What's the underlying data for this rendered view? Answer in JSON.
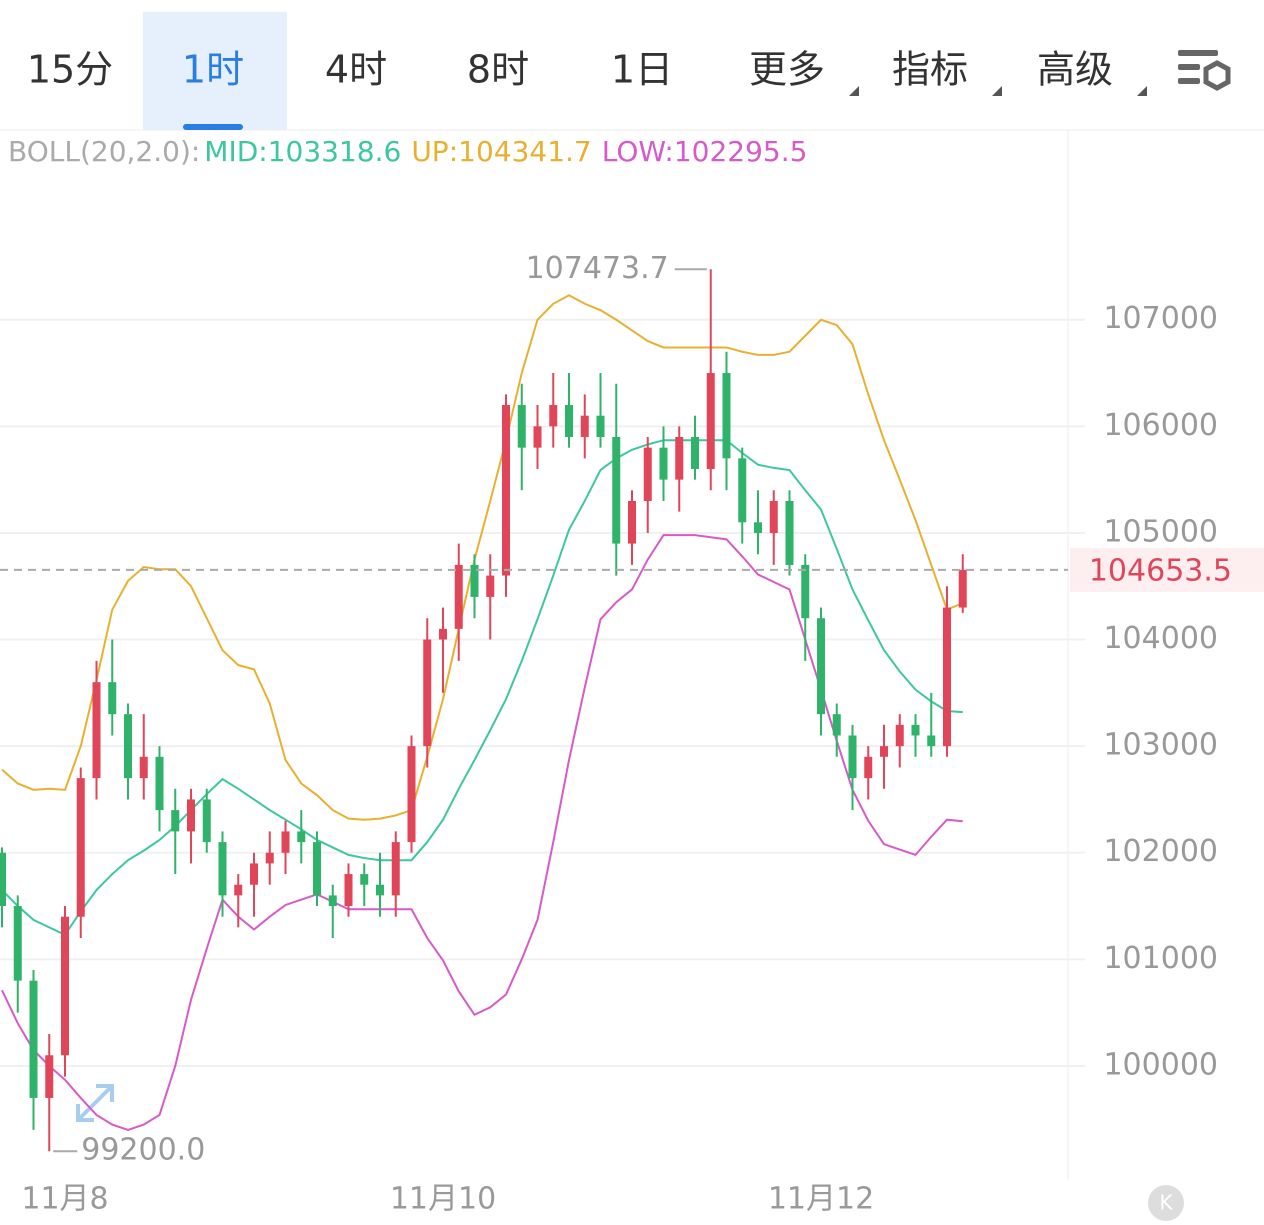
{
  "toolbar": {
    "tabs": [
      "15分",
      "1时",
      "4时",
      "8时",
      "1日",
      "更多",
      "指标",
      "高级"
    ],
    "selected": 1
  },
  "chart_data": {
    "type": "candlestick",
    "indicator": "BOLL(20,2.0):",
    "categories": [
      null,
      null,
      null,
      null,
      "11月8",
      null,
      null,
      null,
      null,
      null,
      null,
      null,
      null,
      null,
      null,
      null,
      null,
      null,
      null,
      null,
      null,
      null,
      null,
      null,
      null,
      null,
      null,
      null,
      "11月10",
      null,
      null,
      null,
      null,
      null,
      null,
      null,
      null,
      null,
      null,
      null,
      null,
      null,
      null,
      null,
      null,
      null,
      null,
      null,
      null,
      null,
      null,
      null,
      "11月12",
      null,
      null,
      null,
      null,
      null,
      null,
      null,
      null,
      null
    ],
    "open": [
      102000,
      101500,
      100800,
      99700,
      100100,
      101400,
      102700,
      103600,
      103300,
      102700,
      102900,
      102400,
      102200,
      102500,
      102100,
      101600,
      101700,
      101900,
      102000,
      102200,
      102100,
      101600,
      101500,
      101800,
      101700,
      101600,
      102100,
      103000,
      104000,
      104100,
      104700,
      104400,
      104600,
      106200,
      105800,
      106000,
      106200,
      105900,
      106100,
      105900,
      104900,
      105300,
      105800,
      105500,
      105900,
      105600,
      106500,
      105700,
      105100,
      105000,
      105300,
      104700,
      104200,
      103300,
      103100,
      102700,
      102900,
      103000,
      103200,
      103100,
      103000,
      104300
    ],
    "high": [
      102050,
      101600,
      100900,
      100300,
      101500,
      102800,
      103800,
      104000,
      103400,
      103300,
      103000,
      102600,
      102600,
      102600,
      102200,
      101800,
      102000,
      102200,
      102300,
      102400,
      102200,
      101700,
      101900,
      101900,
      102000,
      102200,
      103100,
      104200,
      104300,
      104900,
      104800,
      104800,
      106300,
      106400,
      106200,
      106500,
      106500,
      106300,
      106500,
      106400,
      105400,
      105900,
      106000,
      106000,
      106100,
      107473.7,
      106700,
      105800,
      105400,
      105400,
      105400,
      104800,
      104300,
      103400,
      103200,
      103000,
      103200,
      103300,
      103300,
      103500,
      104500,
      104800
    ],
    "low": [
      101300,
      100500,
      99400,
      99200,
      99900,
      101200,
      102500,
      103100,
      102500,
      102500,
      102200,
      101800,
      101900,
      102000,
      101400,
      101300,
      101400,
      101700,
      101800,
      101900,
      101500,
      101200,
      101400,
      101500,
      101400,
      101400,
      102000,
      102800,
      103500,
      103800,
      104200,
      104000,
      104400,
      105400,
      105600,
      105800,
      105800,
      105700,
      105800,
      104600,
      104700,
      105000,
      105300,
      105200,
      105500,
      105400,
      105400,
      104900,
      104800,
      104700,
      104600,
      103800,
      103100,
      102900,
      102400,
      102500,
      102600,
      102800,
      102900,
      102900,
      102900,
      104250
    ],
    "close": [
      101500,
      100800,
      99700,
      100100,
      101400,
      102700,
      103600,
      103300,
      102700,
      102900,
      102400,
      102200,
      102500,
      102100,
      101600,
      101700,
      101900,
      102000,
      102200,
      102100,
      101600,
      101500,
      101800,
      101700,
      101600,
      102100,
      103000,
      104000,
      104100,
      104700,
      104400,
      104600,
      106200,
      105800,
      106000,
      106200,
      105900,
      106100,
      105900,
      104900,
      105300,
      105800,
      105500,
      105900,
      105600,
      106500,
      105700,
      105100,
      105000,
      105300,
      104700,
      104200,
      103300,
      103100,
      102700,
      102900,
      103000,
      103200,
      103100,
      103000,
      104300,
      104653.5
    ],
    "up_color": "#e0455a",
    "down_color": "#2fb36b",
    "series": [
      {
        "name": "MID:103318.6",
        "color": "#3cc7a0",
        "values": [
          101650,
          101500,
          101370,
          101300,
          101230,
          101450,
          101650,
          101800,
          101930,
          102020,
          102120,
          102250,
          102400,
          102550,
          102690,
          102600,
          102500,
          102400,
          102310,
          102220,
          102120,
          102050,
          101980,
          101950,
          101930,
          101930,
          101930,
          102100,
          102310,
          102600,
          102870,
          103150,
          103440,
          103800,
          104190,
          104600,
          105030,
          105300,
          105590,
          105700,
          105780,
          105830,
          105870,
          105870,
          105870,
          105870,
          105870,
          105750,
          105640,
          105610,
          105590,
          105400,
          105220,
          104850,
          104470,
          104180,
          103900,
          103700,
          103530,
          103420,
          103330,
          103318.6
        ]
      },
      {
        "name": "UP:104341.7",
        "color": "#e8b030",
        "values": [
          102780,
          102650,
          102590,
          102600,
          102590,
          103000,
          103620,
          104280,
          104550,
          104680,
          104660,
          104660,
          104500,
          104200,
          103900,
          103760,
          103720,
          103400,
          102870,
          102650,
          102540,
          102400,
          102320,
          102310,
          102320,
          102350,
          102400,
          102900,
          103440,
          104100,
          104750,
          105300,
          105870,
          106500,
          107000,
          107150,
          107230,
          107150,
          107090,
          107000,
          106900,
          106800,
          106740,
          106740,
          106740,
          106740,
          106740,
          106700,
          106670,
          106670,
          106700,
          106850,
          107000,
          106950,
          106770,
          106300,
          105870,
          105500,
          105120,
          104700,
          104280,
          104341.7
        ]
      },
      {
        "name": "LOW:102295.5",
        "color": "#d65ac8",
        "values": [
          100710,
          100400,
          100150,
          100000,
          99870,
          99700,
          99540,
          99450,
          99400,
          99450,
          99540,
          100000,
          100620,
          101100,
          101560,
          101400,
          101280,
          101400,
          101510,
          101560,
          101610,
          101540,
          101470,
          101470,
          101470,
          101470,
          101470,
          101200,
          100990,
          100700,
          100480,
          100550,
          100670,
          101000,
          101370,
          102100,
          102870,
          103550,
          104190,
          104350,
          104470,
          104750,
          104980,
          104980,
          104980,
          104960,
          104940,
          104780,
          104610,
          104540,
          104470,
          104000,
          103530,
          103050,
          102590,
          102300,
          102080,
          102030,
          101980,
          102150,
          102310,
          102295.5
        ]
      }
    ],
    "ylim": [
      98930,
      108780
    ],
    "yticks": [
      100000,
      101000,
      102000,
      103000,
      104000,
      105000,
      106000,
      107000
    ],
    "grid": true,
    "last_price": 104653.5,
    "max_label": 107473.7,
    "min_label": {
      "value": 99200,
      "label": "99200.0"
    }
  }
}
